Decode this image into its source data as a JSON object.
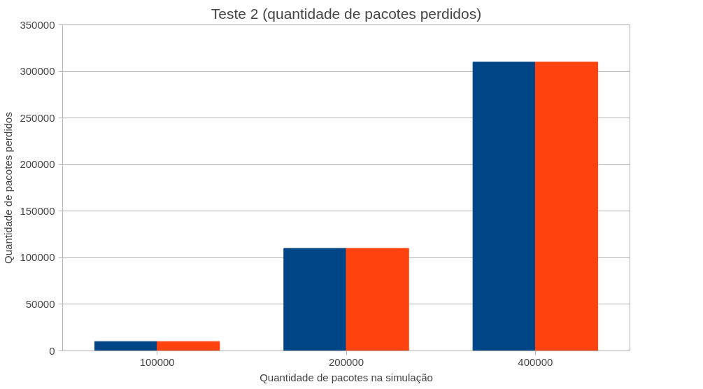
{
  "chart_data": {
    "type": "bar",
    "title": "Teste 2 (quantidade de pacotes perdidos)",
    "xlabel": "Quantidade de pacotes na simulação",
    "ylabel": "Quantidade de pacotes perdidos",
    "categories": [
      "100000",
      "200000",
      "400000"
    ],
    "series": [
      {
        "color": "#004586",
        "values": [
          10000,
          110000,
          310000
        ]
      },
      {
        "color": "#ff420e",
        "values": [
          10000,
          110000,
          310000
        ]
      }
    ],
    "ylim": [
      0,
      350000
    ],
    "yticks": [
      0,
      50000,
      100000,
      150000,
      200000,
      250000,
      300000,
      350000
    ],
    "grid": "y"
  }
}
